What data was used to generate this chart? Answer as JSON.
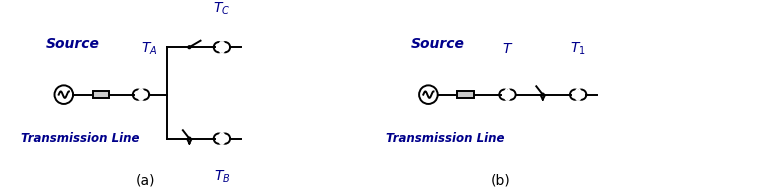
{
  "fig_width": 7.83,
  "fig_height": 1.89,
  "dpi": 100,
  "bg_color": "#ffffff",
  "text_color": "#00008B",
  "line_color": "#000000",
  "label_a": "(a)",
  "label_b": "(b)",
  "source_label": "Source",
  "trans_line_label": "Transmission Line",
  "lw": 1.4,
  "transformer_r": 0.055,
  "source_r": 0.1
}
